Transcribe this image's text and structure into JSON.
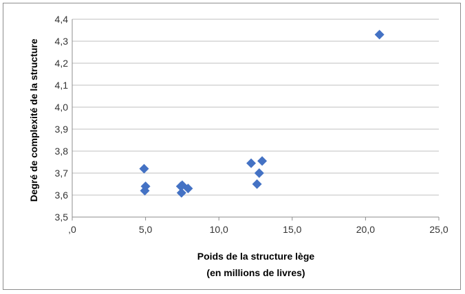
{
  "chart_data": {
    "type": "scatter",
    "xlabel_line1": "Poids de la structure lège",
    "xlabel_line2": "(en millions de livres)",
    "ylabel": "Degré de complexité de la structure",
    "xlim": [
      0,
      25
    ],
    "ylim": [
      3.5,
      4.4
    ],
    "x_ticks": [
      ",0",
      "5,0",
      "10,0",
      "15,0",
      "20,0",
      "25,0"
    ],
    "y_ticks": [
      "3,5",
      "3,6",
      "3,7",
      "3,8",
      "3,9",
      "4,0",
      "4,1",
      "4,2",
      "4,3",
      "4,4"
    ],
    "grid": true,
    "legend": "none",
    "marker_color": "#4472C4",
    "gridline_color": "#bfbfbf",
    "points": [
      {
        "x": 4.9,
        "y": 3.72
      },
      {
        "x": 5.0,
        "y": 3.64
      },
      {
        "x": 4.95,
        "y": 3.62
      },
      {
        "x": 7.4,
        "y": 3.64
      },
      {
        "x": 7.5,
        "y": 3.645
      },
      {
        "x": 7.45,
        "y": 3.61
      },
      {
        "x": 7.9,
        "y": 3.63
      },
      {
        "x": 12.2,
        "y": 3.745
      },
      {
        "x": 12.95,
        "y": 3.755
      },
      {
        "x": 12.75,
        "y": 3.7
      },
      {
        "x": 12.6,
        "y": 3.65
      },
      {
        "x": 20.95,
        "y": 4.33
      }
    ]
  }
}
